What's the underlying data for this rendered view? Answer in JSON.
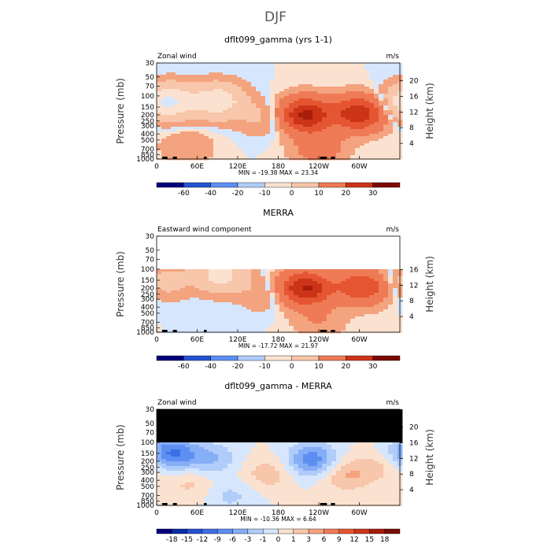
{
  "figure": {
    "suptitle": "DJF"
  },
  "chart_data": [
    {
      "type": "heatmap",
      "title": "dflt099_gamma (yrs 1-1)",
      "left_label": "Zonal wind",
      "units": "m/s",
      "ylabel": "Pressure (mb)",
      "ylabel_right": "Height (km)",
      "x_ticks": [
        "0",
        "60E",
        "120E",
        "180",
        "120W",
        "60W"
      ],
      "pressure_ticks": [
        "30",
        "50",
        "70",
        "100",
        "150",
        "200",
        "250",
        "300",
        "400",
        "500",
        "700",
        "850",
        "1000"
      ],
      "height_ticks": [
        "4",
        "8",
        "12",
        "16",
        "20"
      ],
      "minmax": "MIN = -19.38   MAX =  23.34",
      "colorbar": {
        "levels": [
          "-60",
          "-40",
          "-20",
          "-10",
          "0",
          "10",
          "20",
          "30"
        ],
        "colors": [
          "#00007a",
          "#0a2daa",
          "#2452d2",
          "#3d6fe6",
          "#5d8ff2",
          "#86aef6",
          "#b0ccfa",
          "#d6e6fc",
          "#fbe2d0",
          "#f8c6aa",
          "#f4a37f",
          "#ee7b56",
          "#e55532",
          "#cc3418",
          "#a81c0a",
          "#7a0b04"
        ]
      },
      "blobs": [
        {
          "x": 8,
          "p": 140,
          "v": -5
        },
        {
          "x": 90,
          "p": 120,
          "v": -14
        },
        {
          "x": 20,
          "p": 120,
          "v": -12
        },
        {
          "x": 160,
          "p": 220,
          "v": -4
        },
        {
          "x": 220,
          "p": 200,
          "v": 23
        },
        {
          "x": 300,
          "p": 190,
          "v": 20
        },
        {
          "x": 240,
          "p": 650,
          "v": 6
        },
        {
          "x": 45,
          "p": 650,
          "v": 3
        }
      ],
      "data_top": 30,
      "height_top": 21.5
    },
    {
      "type": "heatmap",
      "title": "MERRA",
      "left_label": "Eastward wind component",
      "units": "m/s",
      "ylabel": "Pressure (mb)",
      "ylabel_right": "Height (km)",
      "x_ticks": [
        "0",
        "60E",
        "120E",
        "180",
        "120W",
        "60W"
      ],
      "pressure_ticks": [
        "30",
        "50",
        "70",
        "100",
        "150",
        "200",
        "250",
        "300",
        "400",
        "500",
        "700",
        "850",
        "1000"
      ],
      "height_ticks": [
        "4",
        "8",
        "12",
        "16"
      ],
      "minmax": "MIN = -17.72   MAX =  21.97",
      "colorbar": {
        "levels": [
          "-60",
          "-40",
          "-20",
          "-10",
          "0",
          "10",
          "20",
          "30"
        ],
        "colors": [
          "#00007a",
          "#0a2daa",
          "#2452d2",
          "#3d6fe6",
          "#5d8ff2",
          "#86aef6",
          "#b0ccfa",
          "#d6e6fc",
          "#fbe2d0",
          "#f8c6aa",
          "#f4a37f",
          "#ee7b56",
          "#e55532",
          "#cc3418",
          "#a81c0a",
          "#7a0b04"
        ]
      },
      "blobs": [
        {
          "x": 10,
          "p": 160,
          "v": -5
        },
        {
          "x": 95,
          "p": 120,
          "v": -12
        },
        {
          "x": 160,
          "p": 250,
          "v": -3
        },
        {
          "x": 220,
          "p": 200,
          "v": 22
        },
        {
          "x": 305,
          "p": 190,
          "v": 15
        },
        {
          "x": 240,
          "p": 650,
          "v": 3
        }
      ],
      "data_top": 100,
      "height_top": 16.5
    },
    {
      "type": "heatmap",
      "title": "dflt099_gamma - MERRA",
      "left_label": "Zonal wind",
      "units": "m/s",
      "ylabel": "Pressure (mb)",
      "ylabel_right": "Height (km)",
      "x_ticks": [
        "0",
        "60E",
        "120E",
        "180",
        "120W",
        "60W"
      ],
      "pressure_ticks": [
        "30",
        "50",
        "70",
        "100",
        "150",
        "200",
        "250",
        "300",
        "400",
        "500",
        "700",
        "850",
        "1000"
      ],
      "height_ticks": [
        "4",
        "8",
        "12",
        "16",
        "20"
      ],
      "minmax": "MIN = -10.36   MAX =    6.64",
      "colorbar": {
        "levels": [
          "-18",
          "-15",
          "-12",
          "-9",
          "-6",
          "-3",
          "-1",
          "0",
          "1",
          "3",
          "6",
          "9",
          "12",
          "15",
          "18"
        ],
        "colors": [
          "#00007a",
          "#0a2daa",
          "#2452d2",
          "#3d6fe6",
          "#5d8ff2",
          "#86aef6",
          "#b0ccfa",
          "#d6e6fc",
          "#fbe2d0",
          "#f8c6aa",
          "#f4a37f",
          "#ee7b56",
          "#e55532",
          "#cc3418",
          "#a81c0a",
          "#7a0b04"
        ]
      },
      "blobs": [
        {
          "x": 22,
          "p": 150,
          "v": -10
        },
        {
          "x": 80,
          "p": 180,
          "v": -5
        },
        {
          "x": 230,
          "p": 190,
          "v": -9
        },
        {
          "x": 165,
          "p": 320,
          "v": 4
        },
        {
          "x": 280,
          "p": 330,
          "v": 5
        },
        {
          "x": 330,
          "p": 250,
          "v": 3
        },
        {
          "x": 50,
          "p": 450,
          "v": 3
        },
        {
          "x": 110,
          "p": 700,
          "v": -3
        }
      ],
      "data_top": 100,
      "masked_above": 100,
      "height_top": 21.5
    }
  ]
}
